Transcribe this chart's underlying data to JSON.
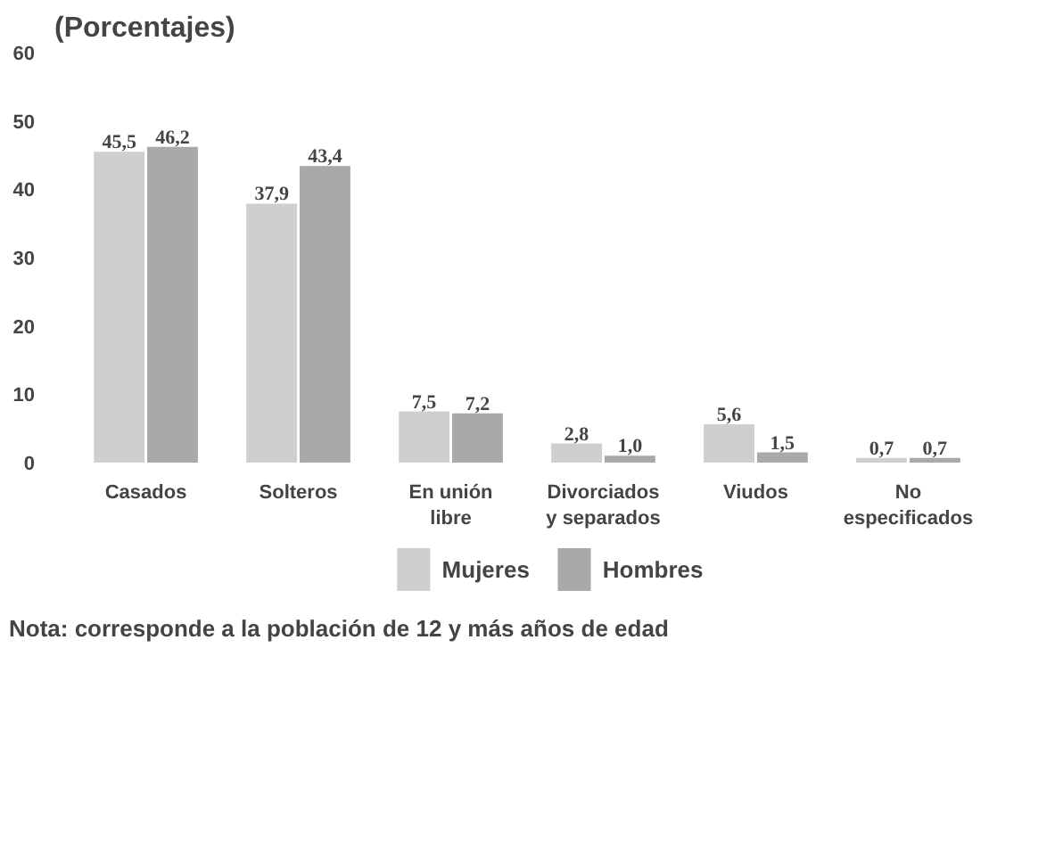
{
  "chart_data": {
    "type": "bar",
    "title": "(Porcentajes)",
    "categories": [
      "Casados",
      "Solteros",
      "En unión\nlibre",
      "Divorciados\ny separados",
      "Viudos",
      "No\nespecificados"
    ],
    "series": [
      {
        "name": "Mujeres",
        "color": "#cfcfcf",
        "values": [
          45.5,
          37.9,
          7.5,
          2.8,
          5.6,
          0.7
        ],
        "value_labels": [
          "45,5",
          "37,9",
          "7,5",
          "2,8",
          "5,6",
          "0,7"
        ]
      },
      {
        "name": "Hombres",
        "color": "#a9a9a9",
        "values": [
          46.2,
          43.4,
          7.2,
          1.0,
          1.5,
          0.7
        ],
        "value_labels": [
          "46,2",
          "43,4",
          "7,2",
          "1,0",
          "1,5",
          "0,7"
        ]
      }
    ],
    "ylim": [
      0,
      60
    ],
    "yticks": [
      0,
      10,
      20,
      30,
      40,
      50,
      60
    ],
    "grid": false,
    "legend": "bottom",
    "annotations": [
      "Nota: corresponde a la población de 12 y más años de edad"
    ]
  }
}
